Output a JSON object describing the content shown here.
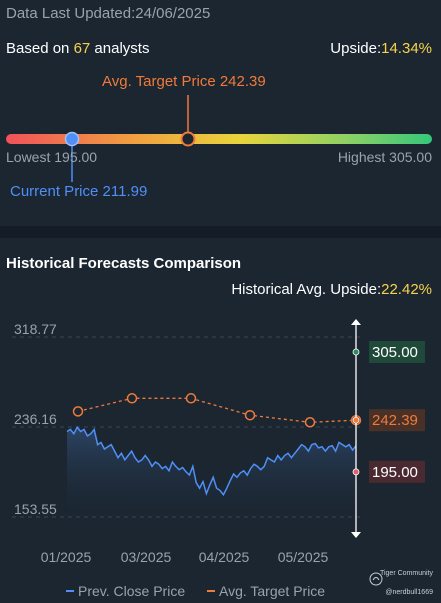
{
  "header": {
    "updated_label": "Data Last Updated:",
    "updated_date": "24/06/2025",
    "based_on_prefix": "Based on ",
    "analyst_count": "67",
    "based_on_suffix": " analysts",
    "upside_label": "Upside:",
    "upside_value": "14.34%"
  },
  "range": {
    "avg_target_label": "Avg. Target Price 242.39",
    "lowest_label": "Lowest 195.00",
    "highest_label": "Highest 305.00",
    "current_label": "Current Price 211.99",
    "lowest": 195.0,
    "highest": 305.0,
    "avg_target": 242.39,
    "current": 211.99,
    "gradient_colors": [
      "#f0525a",
      "#f0a040",
      "#e8d43c",
      "#8ed164",
      "#35c77b"
    ],
    "current_color": "#4f8ff7",
    "avg_color": "#f07a3a"
  },
  "history": {
    "title": "Historical Forecasts Comparison",
    "avg_upside_label": "Historical Avg. Upside:",
    "avg_upside_value": "22.42%"
  },
  "chart_data": {
    "type": "line",
    "y_ticks": [
      "318.77",
      "236.16",
      "153.55"
    ],
    "ylim": [
      153.55,
      318.77
    ],
    "x_ticks": [
      "01/2025",
      "03/2025",
      "04/2025",
      "05/2025"
    ],
    "grid": true,
    "series": [
      {
        "name": "Prev. Close Price",
        "color": "#4f8ff7",
        "fill": true,
        "values": [
          232,
          234,
          230,
          236,
          232,
          234,
          228,
          230,
          234,
          220,
          222,
          216,
          218,
          220,
          214,
          208,
          212,
          206,
          210,
          214,
          208,
          204,
          206,
          210,
          206,
          200,
          204,
          202,
          198,
          200,
          196,
          204,
          200,
          197,
          199,
          195,
          192,
          200,
          185,
          180,
          186,
          175,
          183,
          190,
          180,
          178,
          174,
          180,
          187,
          193,
          190,
          194,
          196,
          192,
          198,
          202,
          200,
          197,
          200,
          208,
          206,
          204,
          210,
          206,
          210,
          212,
          208,
          212,
          216,
          220,
          218,
          214,
          220,
          221,
          217,
          218,
          214,
          218,
          219,
          214,
          222,
          220,
          218,
          220,
          215,
          219
        ]
      },
      {
        "name": "Avg. Target Price",
        "color": "#f07a3a",
        "dashed": true,
        "points": [
          250.5,
          262.5,
          262.5,
          247.0,
          240.5,
          242.39
        ]
      }
    ],
    "markers": [
      {
        "label": "305.00",
        "value": 305.0,
        "color": "#2f8a5a",
        "bg": "#1f4a3a"
      },
      {
        "label": "242.39",
        "value": 242.39,
        "color": "#f07a3a",
        "bg": "#4a3128"
      },
      {
        "label": "195.00",
        "value": 195.0,
        "color": "#e0606a",
        "bg": "#4a2a30"
      }
    ]
  },
  "legend": {
    "prev_close": "Prev. Close Price",
    "avg_target": "Avg. Target Price"
  },
  "brand": {
    "name": "Tiger Community",
    "user": "@nerdbull1669"
  }
}
